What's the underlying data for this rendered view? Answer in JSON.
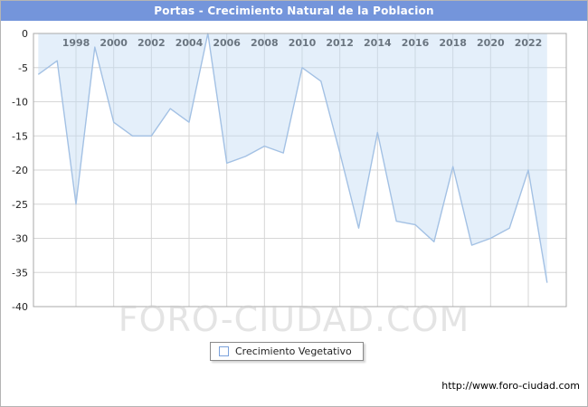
{
  "header": {
    "title": "Portas - Crecimiento Natural de la Poblacion",
    "bg_color": "#7495db"
  },
  "legend": {
    "label": "Crecimiento Vegetativo"
  },
  "watermark": {
    "text": "FORO-CIUDAD.COM"
  },
  "footer": {
    "url": "http://www.foro-ciudad.com"
  },
  "chart_data": {
    "type": "area",
    "title": "Portas - Crecimiento Natural de la Poblacion",
    "x": [
      1996,
      1997,
      1998,
      1999,
      2000,
      2001,
      2002,
      2003,
      2004,
      2005,
      2006,
      2007,
      2008,
      2009,
      2010,
      2011,
      2012,
      2013,
      2014,
      2015,
      2016,
      2017,
      2018,
      2019,
      2020,
      2021,
      2022,
      2023
    ],
    "series": [
      {
        "name": "Crecimiento Vegetativo",
        "values": [
          -6,
          -4,
          -25,
          -2,
          -13,
          -15,
          -15,
          -11,
          -13,
          0,
          -19,
          -18,
          -16.5,
          -17.5,
          -5,
          -7,
          -17.5,
          -28.5,
          -14.5,
          -27.5,
          -28,
          -30.5,
          -19.5,
          -31,
          -30,
          -28.5,
          -20,
          -36.5
        ]
      }
    ],
    "xlabel": "",
    "ylabel": "",
    "ylim": [
      -40,
      0
    ],
    "y_ticks": [
      0,
      -5,
      -10,
      -15,
      -20,
      -25,
      -30,
      -35,
      -40
    ],
    "x_ticks": [
      1998,
      2000,
      2002,
      2004,
      2006,
      2008,
      2010,
      2012,
      2014,
      2016,
      2018,
      2020,
      2022
    ],
    "grid": true,
    "legend_position": "bottom",
    "colors": {
      "line": "#a3c1e4",
      "fill": "rgba(196,219,243,0.45)",
      "grid": "#d6d6d6",
      "border": "#a9a9a9",
      "tick_text": "#1f1f1f"
    }
  }
}
